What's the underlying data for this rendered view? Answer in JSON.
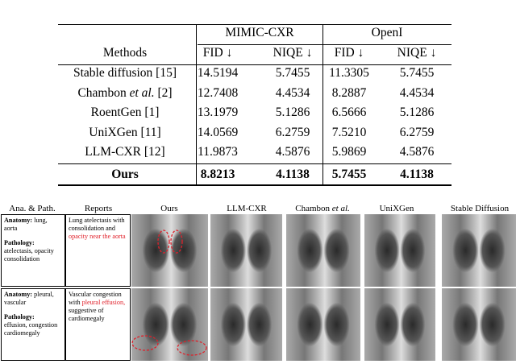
{
  "table": {
    "group_headers": [
      "MIMIC-CXR",
      "OpenI"
    ],
    "columns": [
      "Methods",
      "FID ↓",
      "NIQE ↓",
      "FID ↓",
      "NIQE ↓"
    ],
    "rows": [
      {
        "method": [
          {
            "text": "Stable diffusion [15]"
          }
        ],
        "values": [
          "14.5194",
          "5.7455",
          "11.3305",
          "5.7455"
        ]
      },
      {
        "method": [
          {
            "text": "Chambon "
          },
          {
            "text": "et al.",
            "style": "italic"
          },
          {
            "text": " [2]"
          }
        ],
        "values": [
          "12.7408",
          "4.4534",
          "8.2887",
          "4.4534"
        ]
      },
      {
        "method": [
          {
            "text": "RoentGen [1]"
          }
        ],
        "values": [
          "13.1979",
          "5.1286",
          "6.5666",
          "5.1286"
        ]
      },
      {
        "method": [
          {
            "text": "UniXGen [11]"
          }
        ],
        "values": [
          "14.0569",
          "6.2759",
          "7.5210",
          "6.2759"
        ]
      },
      {
        "method": [
          {
            "text": "LLM-CXR [12]"
          }
        ],
        "values": [
          "11.9873",
          "4.5876",
          "5.9869",
          "4.5876"
        ]
      },
      {
        "method": [
          {
            "text": "Ours"
          }
        ],
        "values": [
          "8.8213",
          "4.1138",
          "5.7455",
          "4.1138"
        ],
        "bold": true
      }
    ]
  },
  "figure": {
    "headers": [
      [
        {
          "text": "Ana. & Path."
        }
      ],
      [
        {
          "text": "Reports"
        }
      ],
      [
        {
          "text": "Ours"
        }
      ],
      [
        {
          "text": "LLM-CXR"
        }
      ],
      [
        {
          "text": "Chambon "
        },
        {
          "text": "et al.",
          "style": "italic"
        }
      ],
      [
        {
          "text": "UniXGen"
        }
      ],
      [
        {
          "text": "Stable Diffusion"
        }
      ]
    ],
    "cases": [
      {
        "anatomy_label": "Anatomy:",
        "anatomy": "lung, aorta",
        "pathology_label": "Pathology:",
        "pathology": "atelectasis, opacity consolidation",
        "report": [
          {
            "text": "Lung atelectasis with consolidation and "
          },
          {
            "text": "opacity near the aorta",
            "highlight": true
          }
        ]
      },
      {
        "anatomy_label": "Anatomy:",
        "anatomy": "pleural, vascular",
        "pathology_label": "Pathology:",
        "pathology": "effusion, congestion cardiomegaly",
        "report": [
          {
            "text": "Vascular congestion with "
          },
          {
            "text": "pleural effusion,",
            "highlight": true
          },
          {
            "text": " suggestive of cardiomegaly"
          }
        ]
      }
    ]
  }
}
